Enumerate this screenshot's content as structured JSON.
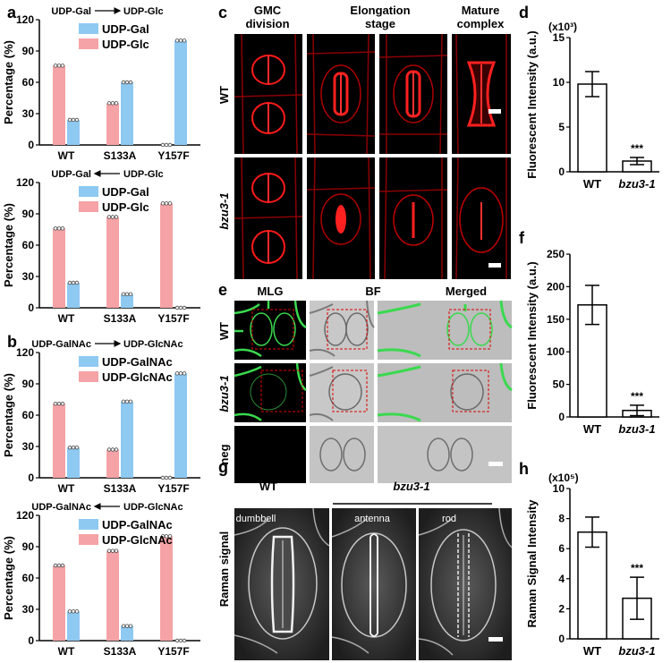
{
  "panel_letters": {
    "a": "a",
    "b": "b",
    "c": "c",
    "d": "d",
    "e": "e",
    "f": "f",
    "g": "g",
    "h": "h"
  },
  "colors": {
    "glc_pink": "#f5a3a6",
    "gal_blue": "#8ec9f2",
    "green": "#34c94a",
    "red": "#e00000",
    "axis": "#000000"
  },
  "micro": {
    "c": {
      "col_headers": [
        "GMC\ndivision",
        "Elongation\nstage",
        "Mature\ncomplex"
      ],
      "row_labels": [
        "WT",
        "bzu3-1"
      ]
    },
    "e": {
      "col_headers": [
        "MLG",
        "BF",
        "Merged"
      ],
      "row_labels": [
        "WT",
        "bzu3-1",
        "neg"
      ]
    },
    "g": {
      "group_wt": "WT",
      "group_mut": "bzu3-1",
      "sub_labels": [
        "dumbbell",
        "antenna",
        "rod"
      ],
      "row_label": "Raman signal"
    }
  },
  "chart_data": [
    {
      "id": "a1",
      "type": "bar",
      "title_left": "UDP-Gal",
      "title_right": "UDP-Glc",
      "arrow": "right",
      "categories": [
        "WT",
        "S133A",
        "Y157F"
      ],
      "ylabel": "Percentage (%)",
      "ylim": [
        0,
        120
      ],
      "yticks": [
        0,
        30,
        60,
        90,
        120
      ],
      "legend_position": "top-right",
      "series": [
        {
          "name": "UDP-Glc",
          "color": "#f5a3a6",
          "values": [
            76,
            40,
            0
          ]
        },
        {
          "name": "UDP-Gal",
          "color": "#8ec9f2",
          "values": [
            24,
            60,
            100
          ]
        }
      ]
    },
    {
      "id": "a2",
      "type": "bar",
      "title_left": "UDP-Gal",
      "title_right": "UDP-Glc",
      "arrow": "left",
      "categories": [
        "WT",
        "S133A",
        "Y157F"
      ],
      "ylabel": "Percentage (%)",
      "ylim": [
        0,
        120
      ],
      "yticks": [
        0,
        30,
        60,
        90,
        120
      ],
      "legend_position": "top-right",
      "series": [
        {
          "name": "UDP-Glc",
          "color": "#f5a3a6",
          "values": [
            76,
            87,
            100
          ]
        },
        {
          "name": "UDP-Gal",
          "color": "#8ec9f2",
          "values": [
            24,
            13,
            0
          ]
        }
      ]
    },
    {
      "id": "b1",
      "type": "bar",
      "title_left": "UDP-GalNAc",
      "title_right": "UDP-GlcNAc",
      "arrow": "right",
      "categories": [
        "WT",
        "S133A",
        "Y157F"
      ],
      "ylabel": "Percentage (%)",
      "ylim": [
        0,
        120
      ],
      "yticks": [
        0,
        30,
        60,
        90,
        120
      ],
      "legend_position": "top-right",
      "series": [
        {
          "name": "UDP-GlcNAc",
          "color": "#f5a3a6",
          "values": [
            71,
            27,
            0
          ]
        },
        {
          "name": "UDP-GalNAc",
          "color": "#8ec9f2",
          "values": [
            29,
            73,
            100
          ]
        }
      ]
    },
    {
      "id": "b2",
      "type": "bar",
      "title_left": "UDP-GalNAc",
      "title_right": "UDP-GlcNAc",
      "arrow": "left",
      "categories": [
        "WT",
        "S133A",
        "Y157F"
      ],
      "ylabel": "Percentage (%)",
      "ylim": [
        0,
        120
      ],
      "yticks": [
        0,
        30,
        60,
        90,
        120
      ],
      "legend_position": "top-right",
      "series": [
        {
          "name": "UDP-GlcNAc",
          "color": "#f5a3a6",
          "values": [
            72,
            86,
            100
          ]
        },
        {
          "name": "UDP-GalNAc",
          "color": "#8ec9f2",
          "values": [
            28,
            14,
            0
          ]
        }
      ]
    },
    {
      "id": "d",
      "type": "bar",
      "ylabel": "Fluorescent Intensity (a.u.)",
      "unit_label": "(x10³)",
      "categories": [
        "WT",
        "bzu3-1"
      ],
      "values": [
        9.8,
        1.2
      ],
      "errors": [
        1.4,
        0.4
      ],
      "ylim": [
        0,
        15
      ],
      "yticks": [
        0,
        5,
        10,
        15
      ],
      "significance": "***"
    },
    {
      "id": "f",
      "type": "bar",
      "ylabel": "Fluorescent Intensity (a.u.)",
      "categories": [
        "WT",
        "bzu3-1"
      ],
      "values": [
        172,
        10
      ],
      "errors": [
        30,
        8
      ],
      "ylim": [
        0,
        250
      ],
      "yticks": [
        0,
        50,
        100,
        150,
        200,
        250
      ],
      "significance": "***"
    },
    {
      "id": "h",
      "type": "bar",
      "ylabel": "Raman Signal Intensity",
      "unit_label": "(x10⁵)",
      "categories": [
        "WT",
        "bzu3-1"
      ],
      "values": [
        7.1,
        2.7
      ],
      "errors": [
        1.0,
        1.4
      ],
      "ylim": [
        0,
        10
      ],
      "yticks": [
        0,
        2,
        4,
        6,
        8,
        10
      ],
      "significance": "***"
    }
  ]
}
